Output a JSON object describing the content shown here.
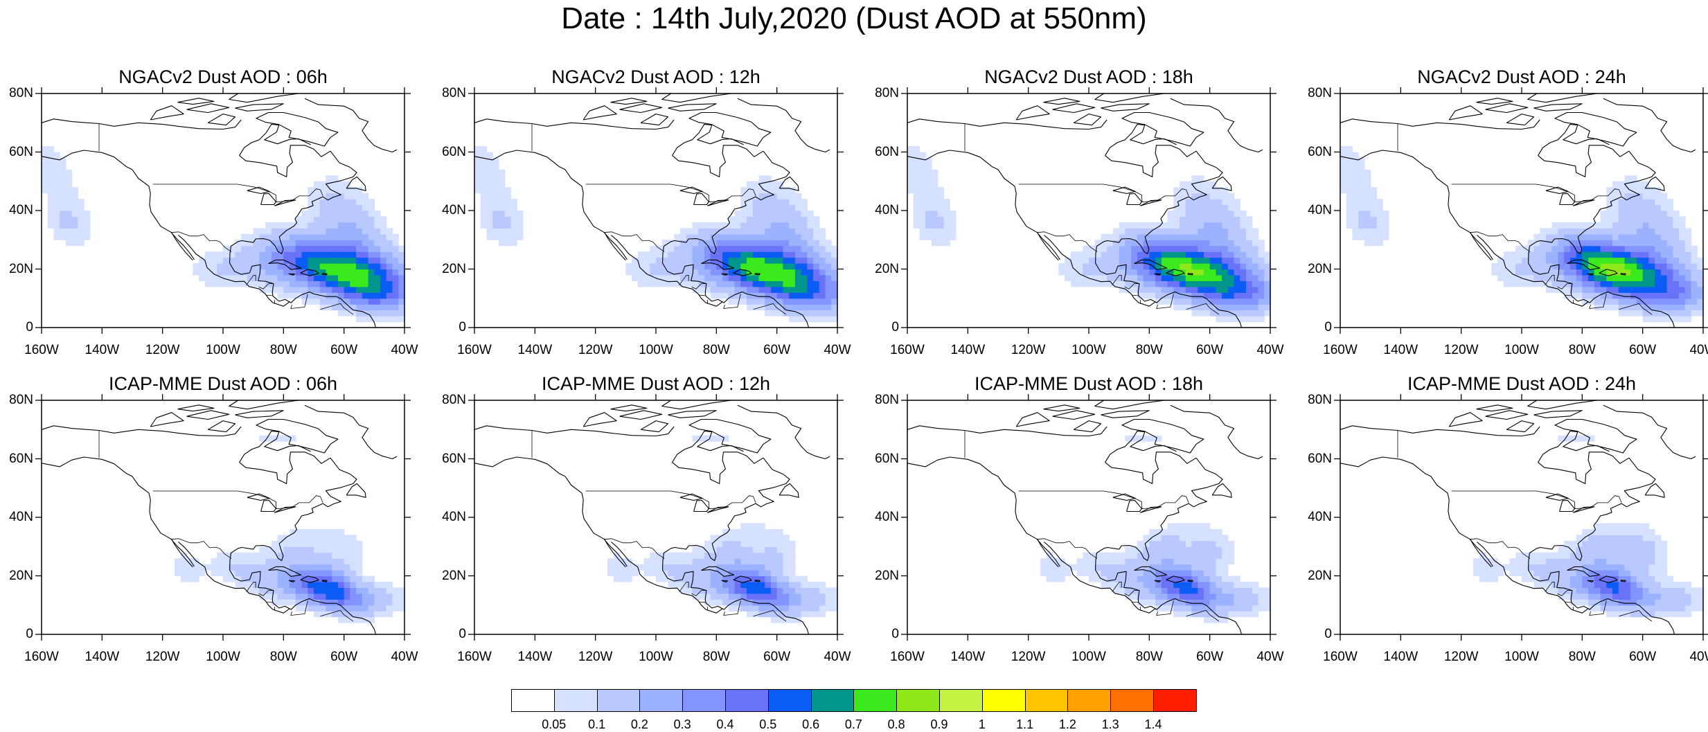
{
  "figure": {
    "title": "Date : 14th July,2020 (Dust AOD at 550nm)"
  },
  "axes": {
    "lat_labels": [
      "0",
      "20N",
      "40N",
      "60N",
      "80N"
    ],
    "lon_labels": [
      "160W",
      "140W",
      "120W",
      "100W",
      "80W",
      "60W",
      "40W"
    ]
  },
  "panels": [
    {
      "title": "NGACv2 Dust AOD : 06h",
      "model": "ngac",
      "hour": 6
    },
    {
      "title": "NGACv2 Dust AOD : 12h",
      "model": "ngac",
      "hour": 12
    },
    {
      "title": "NGACv2 Dust AOD : 18h",
      "model": "ngac",
      "hour": 18
    },
    {
      "title": "NGACv2 Dust AOD : 24h",
      "model": "ngac",
      "hour": 24
    },
    {
      "title": "ICAP-MME Dust AOD : 06h",
      "model": "icap",
      "hour": 6
    },
    {
      "title": "ICAP-MME Dust AOD : 12h",
      "model": "icap",
      "hour": 12
    },
    {
      "title": "ICAP-MME Dust AOD : 18h",
      "model": "icap",
      "hour": 18
    },
    {
      "title": "ICAP-MME Dust AOD : 24h",
      "model": "icap",
      "hour": 24
    }
  ],
  "colorbar": {
    "labels": [
      "0.05",
      "0.1",
      "0.2",
      "0.3",
      "0.4",
      "0.5",
      "0.6",
      "0.7",
      "0.8",
      "0.9",
      "1",
      "1.1",
      "1.2",
      "1.3",
      "1.4"
    ],
    "colors": [
      "#ffffff",
      "#d6e0ff",
      "#b9c8ff",
      "#9cb2ff",
      "#8494ff",
      "#6a72f8",
      "#0a5cf5",
      "#00968c",
      "#3ce81e",
      "#8ee81a",
      "#c6f244",
      "#ffff00",
      "#ffc400",
      "#ffa000",
      "#ff7000",
      "#ff1e00"
    ]
  }
}
